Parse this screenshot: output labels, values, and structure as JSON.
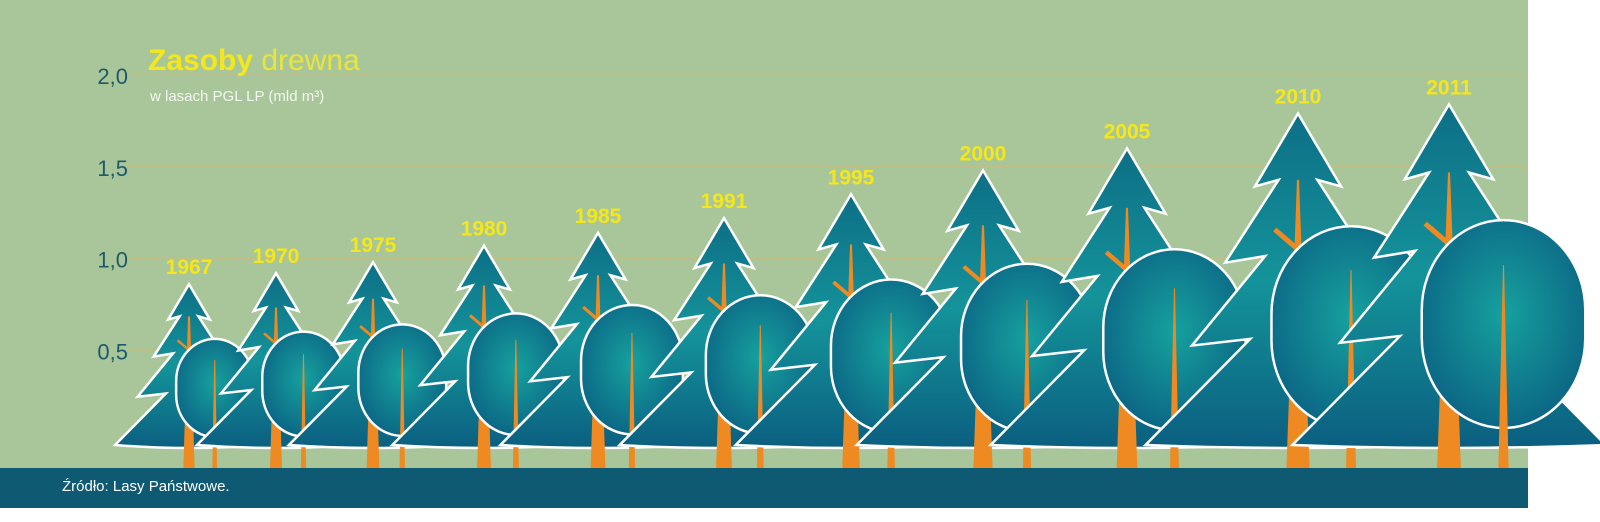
{
  "chart_data": {
    "type": "bar",
    "title_bold": "Zasoby",
    "title_rest": "drewna",
    "subtitle": "w lasach PGL LP (mld m³)",
    "categories": [
      "1967",
      "1970",
      "1975",
      "1980",
      "1985",
      "1991",
      "1995",
      "2000",
      "2005",
      "2010",
      "2011"
    ],
    "values": [
      0.86,
      0.92,
      0.98,
      1.07,
      1.14,
      1.22,
      1.35,
      1.48,
      1.6,
      1.79,
      1.84
    ],
    "y_ticks": [
      "0,5",
      "1,0",
      "1,5",
      "2,0"
    ],
    "ylim": [
      0,
      2.0
    ],
    "grid": true
  },
  "footer": {
    "source": "Źródło: Lasy Państwowe."
  },
  "colors": {
    "background": "#a9c69a",
    "tree": "#0f7f8f",
    "trunk": "#ef8a22",
    "label": "#f4e71a",
    "footer": "#0e5a72"
  }
}
